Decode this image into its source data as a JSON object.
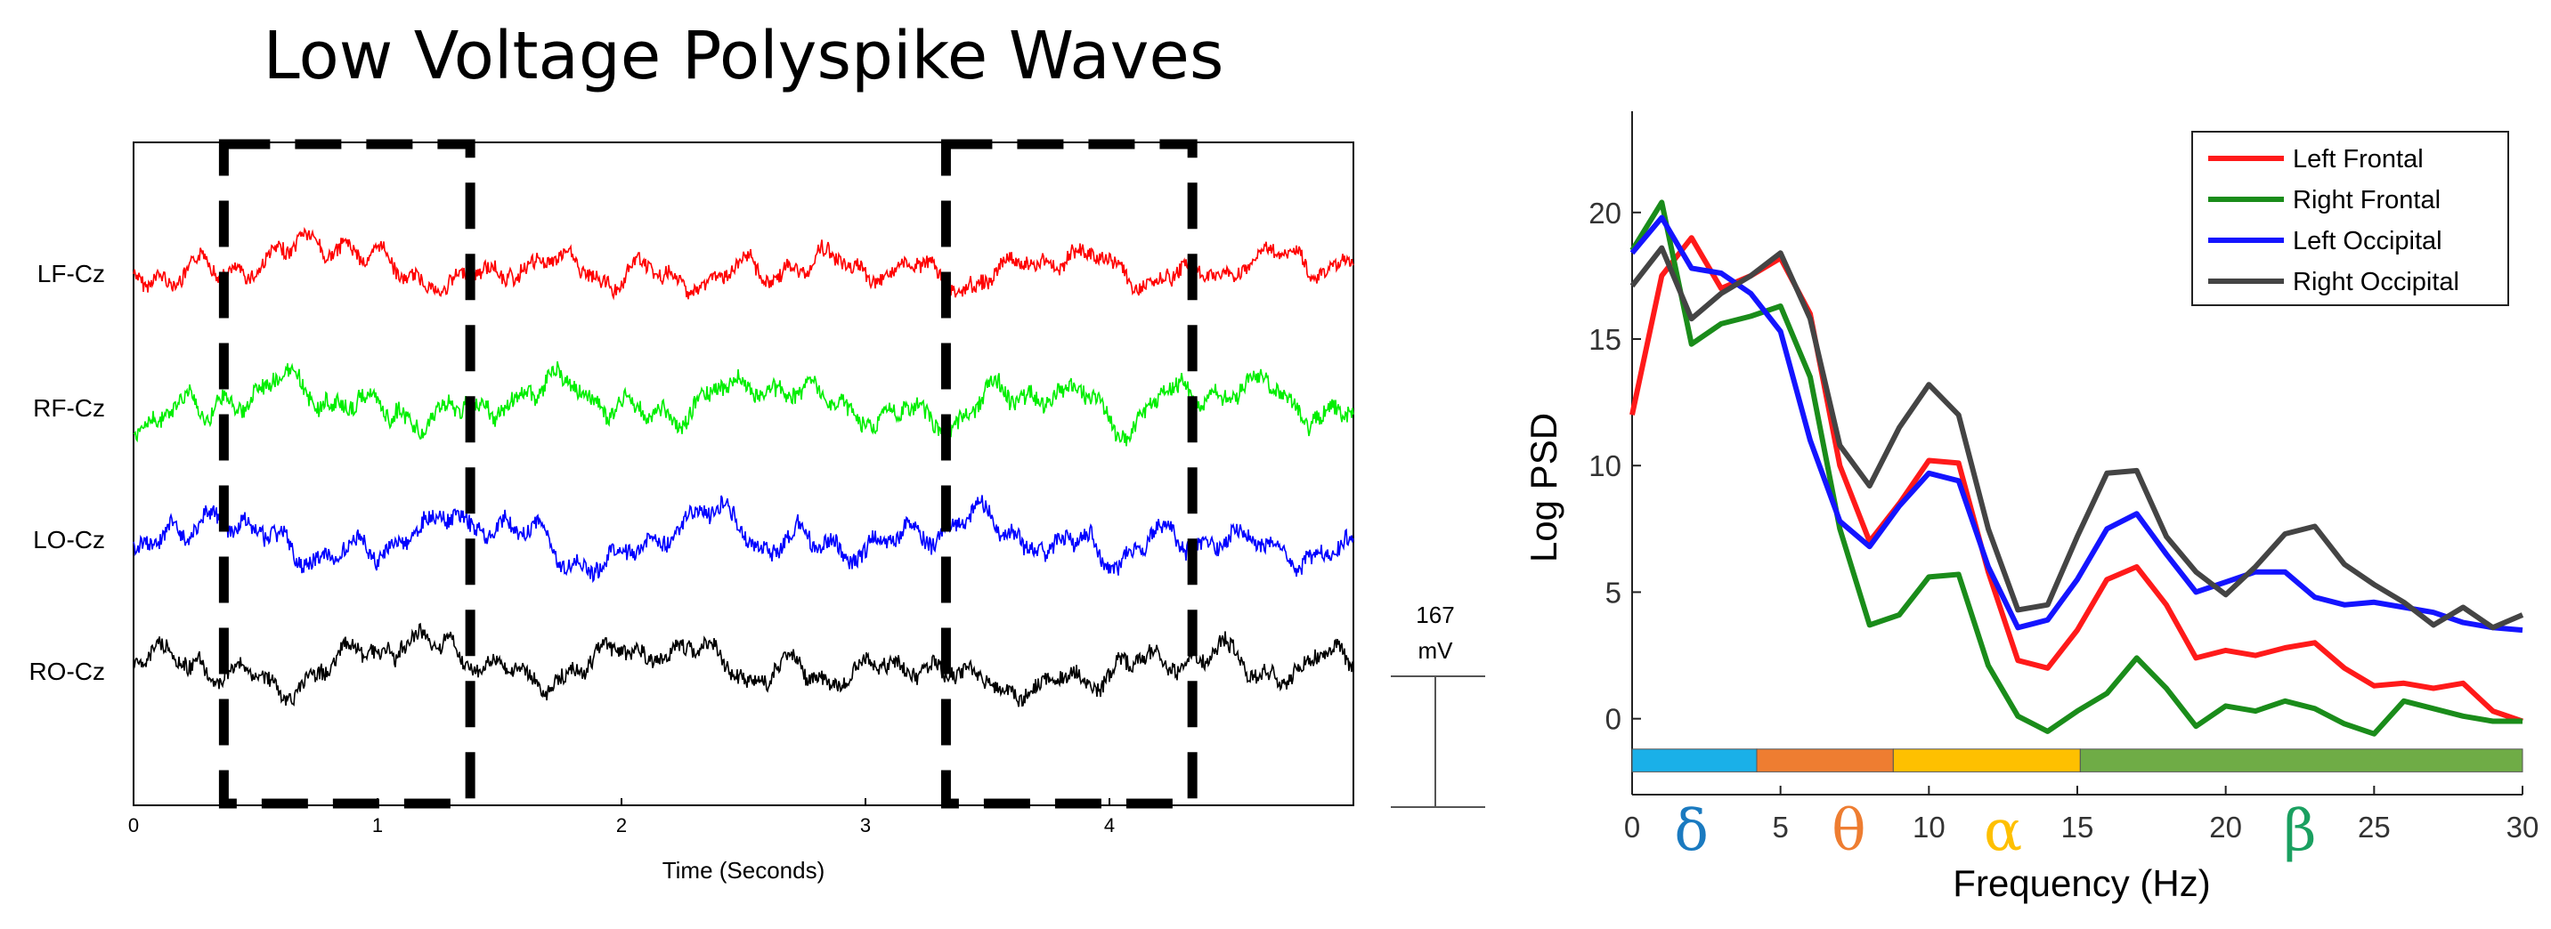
{
  "figure_title": "Low Voltage Polyspike Waves",
  "scale_bar": {
    "value": "167",
    "unit": "mV"
  },
  "chart_data": [
    {
      "type": "line",
      "title": "Low Voltage Polyspike Waves",
      "xlabel": "Time (Seconds)",
      "ylabel": "",
      "xlim": [
        0,
        5
      ],
      "xticks": [
        "0",
        "1",
        "2",
        "3",
        "4"
      ],
      "grid": false,
      "channels": [
        {
          "name": "LF-Cz",
          "color": "#ff0000"
        },
        {
          "name": "RF-Cz",
          "color": "#00ee00"
        },
        {
          "name": "LO-Cz",
          "color": "#0000ff"
        },
        {
          "name": "RO-Cz",
          "color": "#000000"
        }
      ],
      "highlighted_intervals": [
        [
          0.37,
          1.38
        ],
        [
          3.33,
          4.34
        ]
      ]
    },
    {
      "type": "line",
      "xlabel": "Frequency (Hz)",
      "ylabel": "Log PSD",
      "xlim": [
        0,
        30
      ],
      "ylim": [
        -3,
        24
      ],
      "xticks": [
        0,
        5,
        10,
        15,
        20,
        25,
        30
      ],
      "yticks": [
        0,
        5,
        10,
        15,
        20
      ],
      "grid": false,
      "legend_position": "top-right",
      "x": [
        0,
        1,
        2,
        3,
        4,
        5,
        6,
        7,
        8,
        9,
        10,
        11,
        12,
        13,
        14,
        15,
        16,
        17,
        18,
        19,
        20,
        21,
        22,
        23,
        24,
        25,
        26,
        27,
        28,
        29,
        30
      ],
      "series": [
        {
          "name": "Left Frontal",
          "color": "#ff1a1a",
          "values": [
            12,
            17.5,
            19,
            17,
            17.5,
            18.2,
            16,
            10,
            7,
            8.5,
            10.2,
            10.1,
            5.8,
            2.3,
            2,
            3.5,
            5.5,
            6,
            4.5,
            2.4,
            2.7,
            2.5,
            2.8,
            3,
            2,
            1.3,
            1.4,
            1.2,
            1.4,
            0.3,
            -0.1
          ]
        },
        {
          "name": "Right Frontal",
          "color": "#1a8c1a",
          "values": [
            18.5,
            20.4,
            14.8,
            15.6,
            15.9,
            16.3,
            13.5,
            7.5,
            3.7,
            4.1,
            5.6,
            5.7,
            2.1,
            0.1,
            -0.5,
            0.3,
            1,
            2.4,
            1.2,
            -0.3,
            0.5,
            0.3,
            0.7,
            0.4,
            -0.2,
            -0.6,
            0.7,
            0.4,
            0.1,
            -0.1,
            -0.1
          ]
        },
        {
          "name": "Left Occipital",
          "color": "#1414ff",
          "values": [
            18.4,
            19.8,
            17.8,
            17.6,
            16.8,
            15.3,
            11,
            7.8,
            6.8,
            8.4,
            9.7,
            9.4,
            6,
            3.6,
            3.9,
            5.5,
            7.5,
            8.1,
            6.5,
            5,
            5.4,
            5.8,
            5.8,
            4.8,
            4.5,
            4.6,
            4.4,
            4.2,
            3.8,
            3.6,
            3.5
          ]
        },
        {
          "name": "Right Occipital",
          "color": "#444444",
          "values": [
            17.1,
            18.6,
            15.8,
            16.8,
            17.5,
            18.4,
            15.8,
            10.8,
            9.2,
            11.5,
            13.2,
            12,
            7.5,
            4.3,
            4.5,
            7.2,
            9.7,
            9.8,
            7.2,
            5.8,
            4.9,
            6,
            7.3,
            7.6,
            6.1,
            5.3,
            4.6,
            3.7,
            4.4,
            3.6,
            4.1
          ]
        }
      ],
      "bands": [
        {
          "symbol": "δ",
          "from": 0,
          "to": 4.2,
          "bar_color": "#1ab0e8",
          "label_color": "#1a7ac0",
          "label_x": 2
        },
        {
          "symbol": "θ",
          "from": 4.2,
          "to": 8.8,
          "bar_color": "#ee7d31",
          "label_color": "#ee7d31",
          "label_x": 7.3
        },
        {
          "symbol": "α",
          "from": 8.8,
          "to": 15.1,
          "bar_color": "#fec000",
          "label_color": "#fec000",
          "label_x": 12.5
        },
        {
          "symbol": "β",
          "from": 15.1,
          "to": 30,
          "bar_color": "#6fac46",
          "label_color": "#1aa060",
          "label_x": 22.5
        }
      ]
    }
  ]
}
